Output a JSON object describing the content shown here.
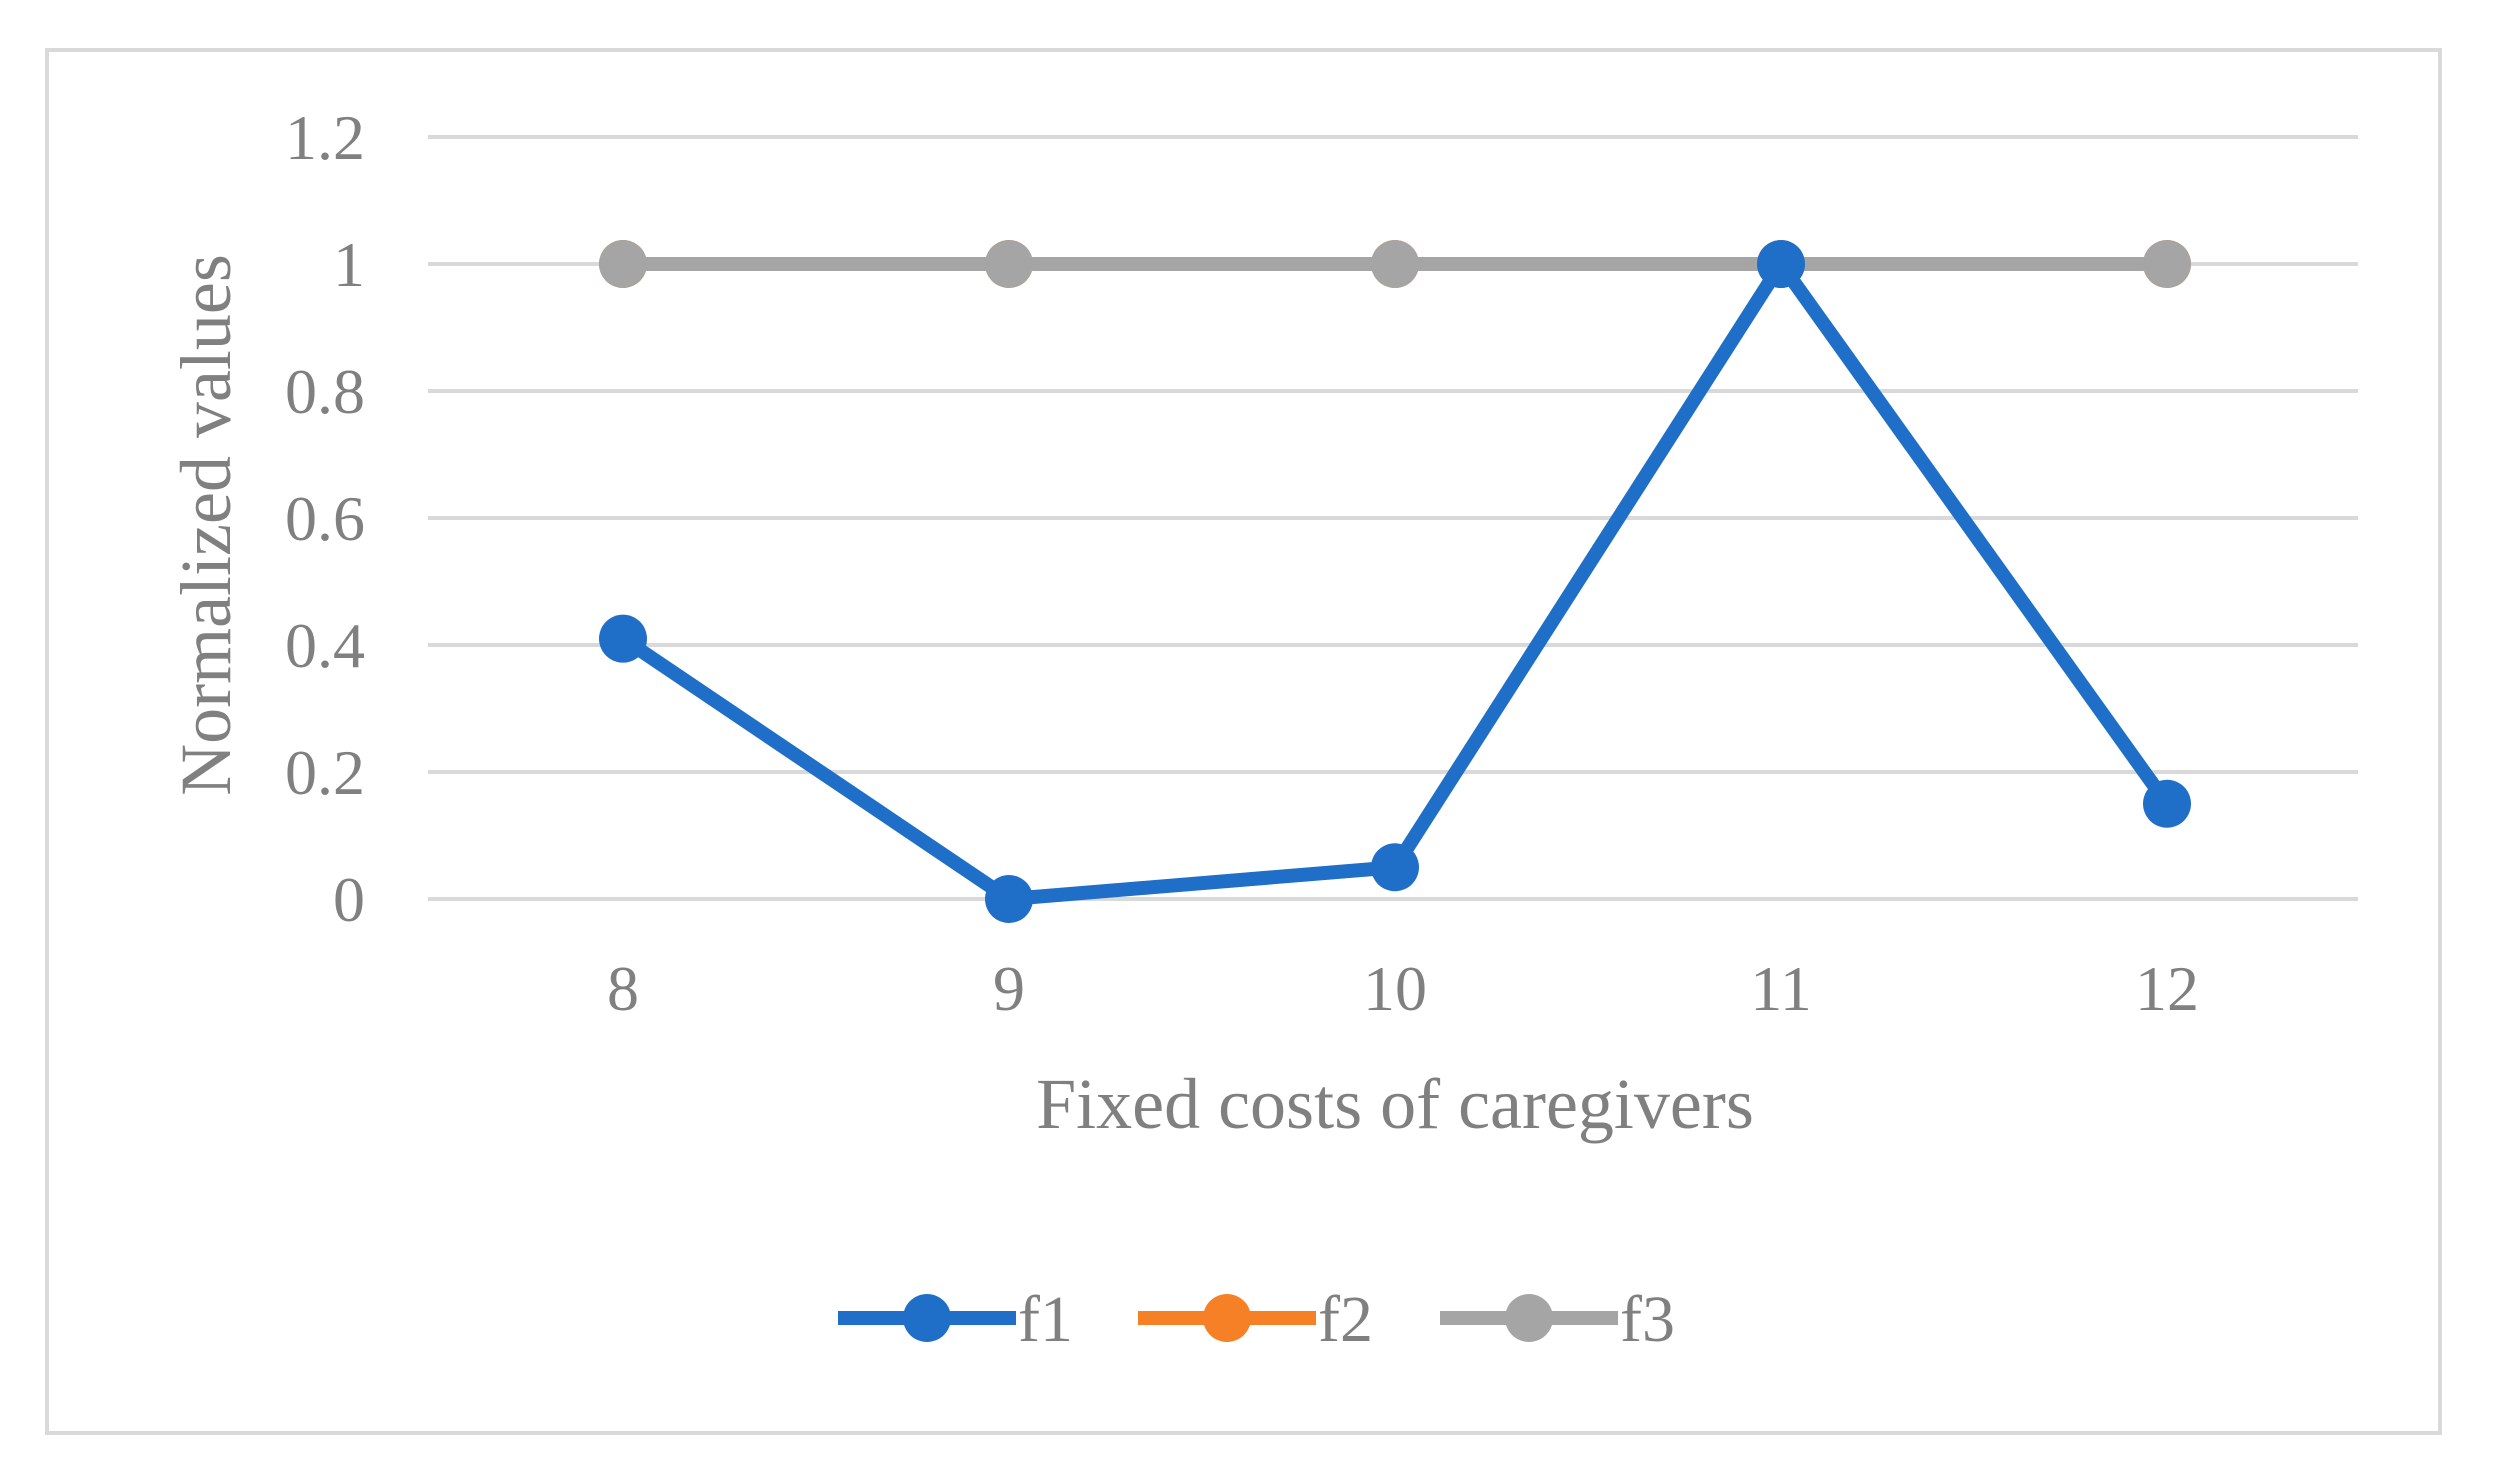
{
  "chart_data": {
    "type": "line",
    "title": "",
    "xlabel": "Fixed costs of caregivers",
    "ylabel": "Normalized values",
    "categories": [
      "8",
      "9",
      "10",
      "11",
      "12"
    ],
    "ylim": [
      0,
      1.2
    ],
    "yticks": [
      "0",
      "0.2",
      "0.4",
      "0.6",
      "0.8",
      "1",
      "1.2"
    ],
    "grid": true,
    "legend_position": "bottom",
    "series": [
      {
        "name": "f1",
        "color": "#1f6fc8",
        "values": [
          0.41,
          0.0,
          0.05,
          1.0,
          0.15
        ]
      },
      {
        "name": "f2",
        "color": "#f58025",
        "values": [
          1.0,
          1.0,
          1.0,
          1.0,
          1.0
        ]
      },
      {
        "name": "f3",
        "color": "#a5a5a5",
        "values": [
          1.0,
          1.0,
          1.0,
          1.0,
          1.0
        ]
      }
    ]
  }
}
